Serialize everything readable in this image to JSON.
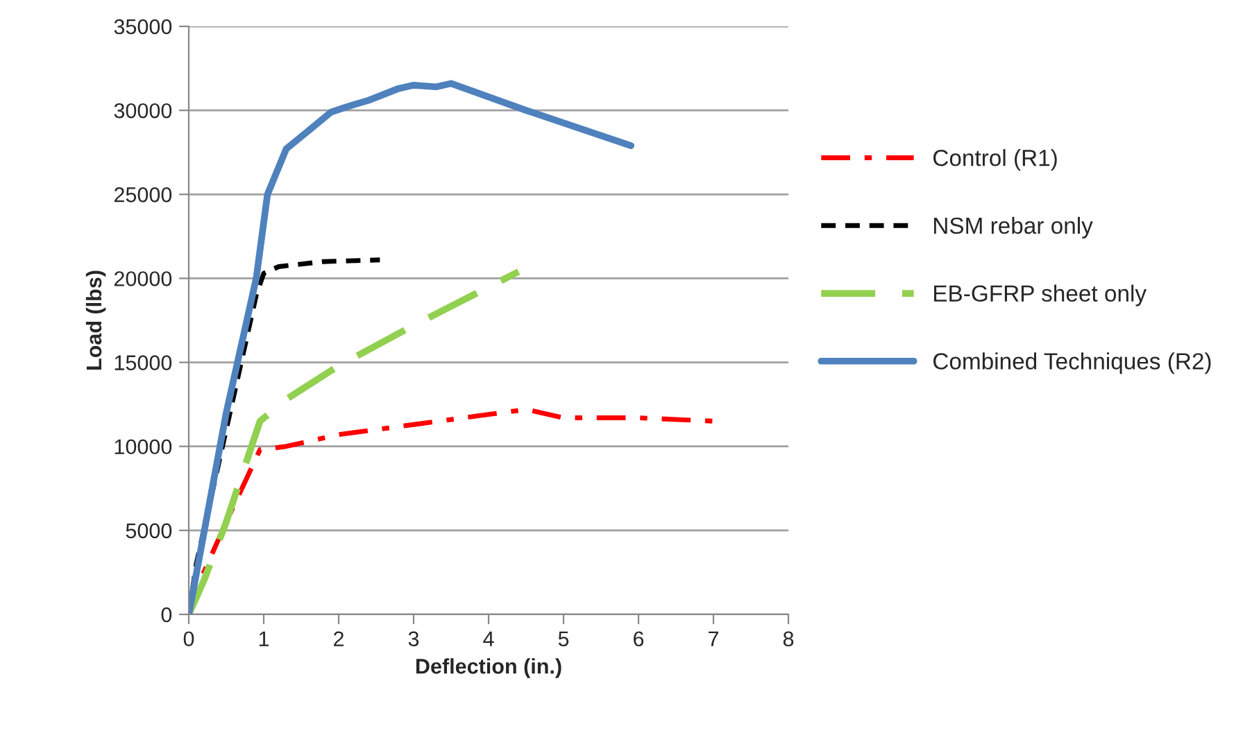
{
  "chart_data": {
    "type": "line",
    "xlabel": "Deflection (in.)",
    "ylabel": "Load (lbs)",
    "xlim": [
      0,
      8
    ],
    "xticks": [
      0,
      1,
      2,
      3,
      4,
      5,
      6,
      7,
      8
    ],
    "ylim": [
      0,
      35000
    ],
    "yticks": [
      0,
      5000,
      10000,
      15000,
      20000,
      25000,
      30000,
      35000
    ],
    "grid": "y",
    "legend": "right",
    "series": [
      {
        "name": "Control (R1)",
        "color": "#ff0000",
        "line_style": "dashdot",
        "x": [
          0,
          0.2,
          0.5,
          0.95,
          1.3,
          2,
          3,
          4,
          4.5,
          5,
          6,
          7
        ],
        "values": [
          0,
          2500,
          5500,
          9800,
          10000,
          10700,
          11300,
          11900,
          12200,
          11700,
          11700,
          11500
        ]
      },
      {
        "name": "NSM rebar only",
        "color": "#000000",
        "line_style": "dotted",
        "x": [
          0,
          0.1,
          0.5,
          0.9,
          1.0,
          1.2,
          1.8,
          2.55
        ],
        "values": [
          0,
          3000,
          11000,
          19000,
          20300,
          20700,
          21000,
          21100
        ]
      },
      {
        "name": "EB-GFRP sheet only",
        "color": "#92d050",
        "line_style": "dashed",
        "x": [
          0,
          0.2,
          0.5,
          0.95,
          1.3,
          2,
          3,
          4.4
        ],
        "values": [
          0,
          2000,
          5500,
          11500,
          12800,
          14800,
          17200,
          20400
        ]
      },
      {
        "name": "Combined Techniques (R2)",
        "color": "#4f81bd",
        "line_style": "solid",
        "x": [
          0,
          0.5,
          0.9,
          1.05,
          1.3,
          1.6,
          1.9,
          2.1,
          2.4,
          2.8,
          3.0,
          3.3,
          3.5,
          4.5,
          5.9
        ],
        "values": [
          0,
          12000,
          20000,
          25000,
          27700,
          28800,
          29900,
          30200,
          30600,
          31300,
          31500,
          31400,
          31600,
          30000,
          27900
        ]
      }
    ]
  }
}
